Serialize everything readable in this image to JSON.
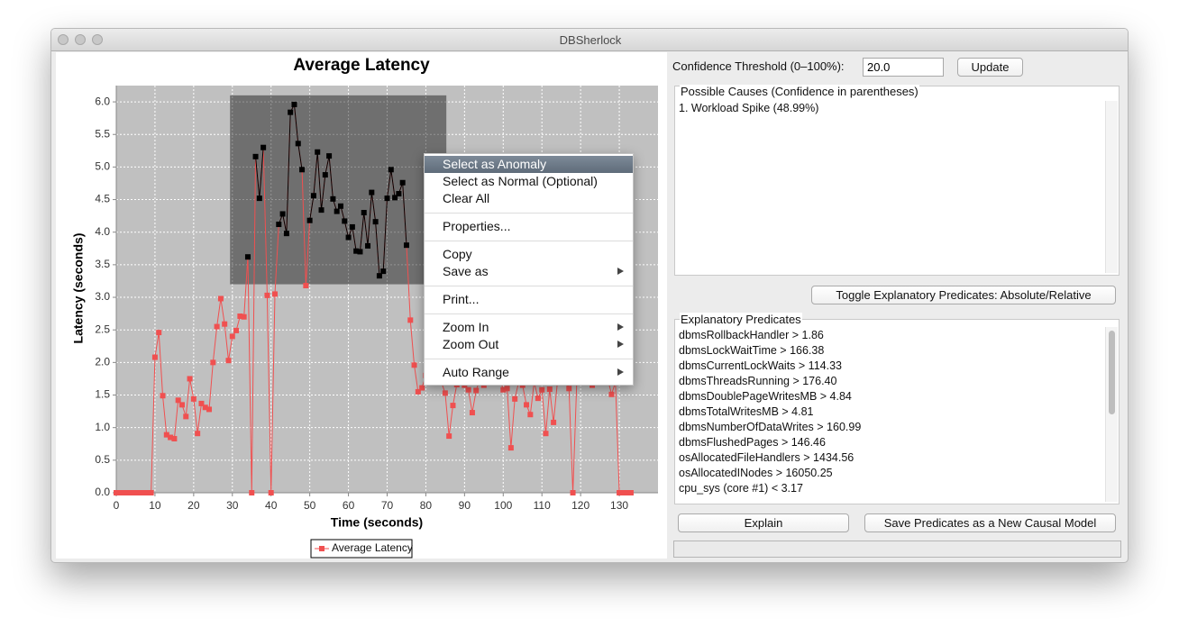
{
  "window": {
    "title": "DBSherlock"
  },
  "chart_data": {
    "type": "line",
    "title": "Average Latency",
    "x_label": "Time (seconds)",
    "y_label": "Latency (seconds)",
    "x": [
      0,
      1,
      2,
      3,
      4,
      5,
      6,
      7,
      8,
      9,
      10,
      11,
      12,
      13,
      14,
      15,
      16,
      17,
      18,
      19,
      20,
      21,
      22,
      23,
      24,
      25,
      26,
      27,
      28,
      29,
      30,
      31,
      32,
      33,
      34,
      35,
      36,
      37,
      38,
      39,
      40,
      41,
      42,
      43,
      44,
      45,
      46,
      47,
      48,
      49,
      50,
      51,
      52,
      53,
      54,
      55,
      56,
      57,
      58,
      59,
      60,
      61,
      62,
      63,
      64,
      65,
      66,
      67,
      68,
      69,
      70,
      71,
      72,
      73,
      74,
      75,
      76,
      77,
      78,
      79,
      80,
      81,
      82,
      83,
      84,
      85,
      86,
      87,
      88,
      89,
      90,
      91,
      92,
      93,
      94,
      95,
      96,
      97,
      98,
      99,
      100,
      101,
      102,
      103,
      104,
      105,
      106,
      107,
      108,
      109,
      110,
      111,
      112,
      113,
      114,
      115,
      116,
      117,
      118,
      119,
      120,
      121,
      122,
      123,
      124,
      125,
      126,
      127,
      128,
      129,
      130,
      131,
      132,
      133
    ],
    "series": [
      {
        "name": "Average Latency",
        "color": "#f05050",
        "values": [
          0,
          0,
          0,
          0,
          0,
          0,
          0,
          0,
          0,
          0,
          2.08,
          2.46,
          1.49,
          0.89,
          0.85,
          0.83,
          1.42,
          1.35,
          1.17,
          1.75,
          1.44,
          0.91,
          1.37,
          1.31,
          1.28,
          2.0,
          2.55,
          2.98,
          2.59,
          2.03,
          2.4,
          2.49,
          2.71,
          2.7,
          3.62,
          0,
          5.16,
          4.52,
          5.3,
          3.03,
          0,
          3.05,
          4.12,
          4.28,
          3.98,
          5.84,
          5.96,
          5.36,
          4.96,
          3.18,
          4.18,
          4.56,
          5.23,
          4.34,
          4.88,
          5.17,
          4.51,
          4.32,
          4.4,
          4.17,
          3.92,
          4.08,
          3.71,
          3.7,
          4.3,
          3.79,
          4.61,
          4.16,
          3.33,
          3.4,
          4.52,
          4.96,
          4.53,
          4.59,
          4.76,
          3.8,
          2.65,
          1.96,
          1.55,
          1.61,
          1.8,
          1.9,
          1.75,
          1.85,
          1.7,
          1.53,
          0.87,
          1.34,
          1.66,
          1.8,
          1.65,
          1.58,
          1.23,
          1.57,
          1.75,
          1.65,
          1.8,
          1.7,
          1.75,
          1.8,
          1.58,
          1.6,
          0.69,
          1.44,
          1.7,
          1.65,
          1.35,
          1.2,
          1.7,
          1.45,
          1.58,
          0.91,
          1.59,
          1.08,
          1.7,
          1.8,
          1.75,
          1.6,
          0,
          1.7,
          1.75,
          1.8,
          1.7,
          1.65,
          1.75,
          1.7,
          1.8,
          1.75,
          1.51,
          1.7,
          0,
          0,
          0,
          0
        ]
      }
    ],
    "selection": {
      "xlim": [
        29.4,
        85.3
      ],
      "ylim": [
        3.2,
        6.1
      ],
      "color": "#000000"
    },
    "xlim": [
      0,
      140
    ],
    "ylim": [
      0,
      6.25
    ],
    "xticks": [
      0,
      10,
      20,
      30,
      40,
      50,
      60,
      70,
      80,
      90,
      100,
      110,
      120,
      130
    ],
    "yticks": [
      {
        "value": 0,
        "label": "0.0"
      },
      0.5,
      {
        "value": 1,
        "label": "1.0"
      },
      1.5,
      {
        "value": 2,
        "label": "2.0"
      },
      2.5,
      {
        "value": 3,
        "label": "3.0"
      },
      3.5,
      {
        "value": 4,
        "label": "4.0"
      },
      4.5,
      {
        "value": 5,
        "label": "5.0"
      },
      5.5,
      {
        "value": 6,
        "label": "6.0"
      }
    ],
    "grid": true,
    "legend": "bottom"
  },
  "controls": {
    "threshold_label": "Confidence Threshold (0–100%):",
    "threshold_value": "20.0",
    "update_button": "Update",
    "toggle_button": "Toggle Explanatory Predicates: Absolute/Relative",
    "explain_button": "Explain",
    "save_button": "Save Predicates as a New Causal Model"
  },
  "possible_causes": {
    "title": "Possible Causes (Confidence in parentheses)",
    "items": [
      "1. Workload Spike (48.99%)"
    ]
  },
  "explanatory_predicates": {
    "title": "Explanatory Predicates",
    "items": [
      "dbmsRollbackHandler > 1.86",
      "dbmsLockWaitTime > 166.38",
      "dbmsCurrentLockWaits > 114.33",
      "dbmsThreadsRunning > 176.40",
      "dbmsDoublePageWritesMB > 4.84",
      "dbmsTotalWritesMB > 4.81",
      "dbmsNumberOfDataWrites > 160.99",
      "dbmsFlushedPages > 146.46",
      "osAllocatedFileHandlers > 1434.56",
      "osAllocatedINodes > 16050.25",
      "cpu_sys (core #1) < 3.17"
    ]
  },
  "context_menu": {
    "items": [
      "Select as Anomaly",
      "Select as Normal (Optional)",
      "Clear All",
      "Properties...",
      "Copy",
      "Save as",
      "Print...",
      "Zoom In",
      "Zoom Out",
      "Auto Range"
    ]
  }
}
